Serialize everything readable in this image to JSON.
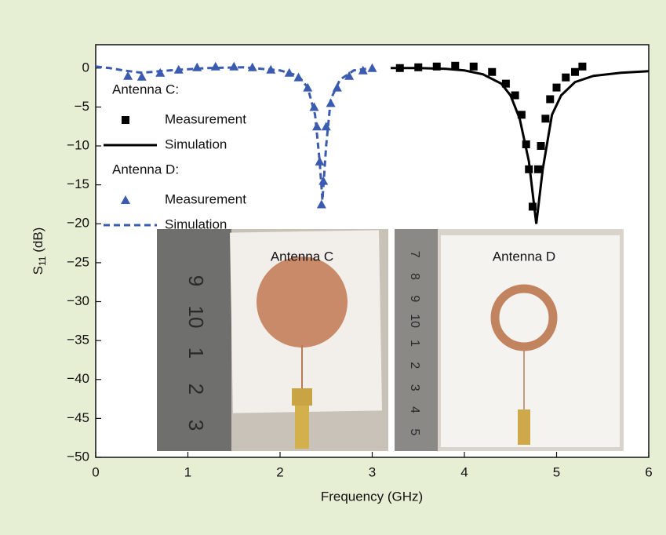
{
  "chart_data": {
    "type": "line",
    "x_label": "Frequency (GHz)",
    "y_label": [
      "S",
      "11",
      " (dB)"
    ],
    "xlim": [
      0,
      6
    ],
    "ylim": [
      -50,
      3
    ],
    "xticks": [
      0,
      1,
      2,
      3,
      4,
      5,
      6
    ],
    "yticks": [
      0,
      {
        "value": -5,
        "label": "−5"
      },
      {
        "value": -10,
        "label": "−10"
      },
      {
        "value": -15,
        "label": "−15"
      },
      {
        "value": -20,
        "label": "−20"
      },
      {
        "value": -25,
        "label": "−25"
      },
      {
        "value": -30,
        "label": "−30"
      },
      {
        "value": -35,
        "label": "−35"
      },
      {
        "value": -40,
        "label": "−40"
      },
      {
        "value": -45,
        "label": "−45"
      },
      {
        "value": -50,
        "label": "−50"
      }
    ],
    "series": [
      {
        "group": "Antenna C:",
        "name": "Measurement",
        "style": "square",
        "color": "#000000",
        "x": [
          3.3,
          3.5,
          3.7,
          3.9,
          4.1,
          4.3,
          4.45,
          4.55,
          4.62,
          4.67,
          4.7,
          4.74,
          4.8,
          4.83,
          4.88,
          4.93,
          5.0,
          5.1,
          5.2,
          5.28
        ],
        "values": [
          0,
          0.1,
          0.2,
          0.3,
          0.2,
          -0.5,
          -2,
          -3.5,
          -6,
          -9.8,
          -13,
          -17.8,
          -13,
          -10,
          -6.5,
          -4,
          -2.5,
          -1.2,
          -0.5,
          0.2
        ]
      },
      {
        "name": "Simulation",
        "style": "solid",
        "color": "#000000",
        "x": [
          3.2,
          3.5,
          3.8,
          4.0,
          4.2,
          4.4,
          4.5,
          4.6,
          4.7,
          4.78,
          4.85,
          4.95,
          5.05,
          5.2,
          5.4,
          5.7,
          6.0
        ],
        "values": [
          0,
          0,
          -0.1,
          -0.3,
          -0.8,
          -2,
          -3.5,
          -6.5,
          -12,
          -20,
          -13,
          -6,
          -3.5,
          -1.8,
          -1,
          -0.6,
          -0.4
        ]
      },
      {
        "group": "Antenna D:",
        "name": "Measurement",
        "style": "triangle",
        "color": "#3a5bb0",
        "x": [
          0.35,
          0.5,
          0.7,
          0.9,
          1.1,
          1.3,
          1.5,
          1.7,
          1.9,
          2.1,
          2.2,
          2.3,
          2.37,
          2.4,
          2.43,
          2.45,
          2.47,
          2.5,
          2.55,
          2.62,
          2.75,
          2.9,
          3.0
        ],
        "values": [
          -1,
          -1.1,
          -0.6,
          -0.2,
          0.1,
          0.2,
          0.2,
          0.1,
          -0.2,
          -0.6,
          -1.2,
          -2.5,
          -5,
          -7.5,
          -12,
          -17.5,
          -14.5,
          -7.5,
          -4.5,
          -2.5,
          -1,
          -0.3,
          0
        ]
      },
      {
        "name": "Simulation",
        "style": "dashed",
        "color": "#3a5bb0",
        "x": [
          0,
          0.15,
          0.3,
          0.5,
          0.8,
          1.2,
          1.6,
          2.0,
          2.2,
          2.3,
          2.38,
          2.43,
          2.46,
          2.5,
          2.55,
          2.65,
          2.8,
          3.0
        ],
        "values": [
          0.2,
          0,
          -0.3,
          -0.6,
          -0.3,
          0,
          0.1,
          -0.3,
          -1,
          -2.5,
          -6,
          -12,
          -17,
          -10,
          -4,
          -1.5,
          -0.3,
          0
        ]
      }
    ],
    "insets": [
      {
        "label": "Antenna C",
        "ruler": [
          "9",
          "10",
          "1",
          "2",
          "3"
        ]
      },
      {
        "label": "Antenna D",
        "ruler": [
          "7",
          "8",
          "9",
          "10",
          "1",
          "2",
          "3",
          "4",
          "5"
        ]
      }
    ]
  }
}
